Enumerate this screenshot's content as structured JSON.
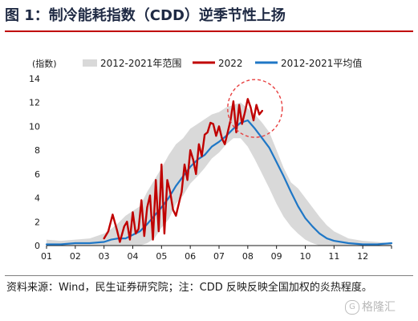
{
  "header": {
    "title": "图 1：制冷能耗指数（CDD）逆季节性上扬"
  },
  "footer": {
    "source": "资料来源：Wind，民生证券研究院；注：CDD 反映反映全国加权的炎热程度。",
    "watermark": "格隆汇",
    "watermark_glyph": "G"
  },
  "colors": {
    "range_band": "#d9d9d9",
    "series_2022": "#c00000",
    "series_avg": "#1f77c6",
    "highlight_circle": "#e84040"
  },
  "chart_data": {
    "type": "area",
    "unit_label": "(指数)",
    "ylim": [
      0,
      14
    ],
    "yticks": [
      0,
      2,
      4,
      6,
      8,
      10,
      12,
      14
    ],
    "xlim": [
      1,
      13
    ],
    "xticks": [
      "01",
      "02",
      "03",
      "04",
      "05",
      "06",
      "07",
      "08",
      "09",
      "10",
      "11",
      "12"
    ],
    "grid": false,
    "legend_position": "top",
    "legend": [
      "2012-2021年范围",
      "2022",
      "2012-2021平均值"
    ],
    "annotation": "dashed circle highlighting late-July to mid-August 2022 peak",
    "range_band": {
      "name": "2012-2021年范围",
      "x": [
        1,
        1.5,
        2,
        2.5,
        3,
        3.25,
        3.5,
        3.75,
        4,
        4.25,
        4.5,
        4.75,
        5,
        5.25,
        5.5,
        5.75,
        6,
        6.25,
        6.5,
        6.75,
        7,
        7.25,
        7.5,
        7.75,
        8,
        8.25,
        8.5,
        8.75,
        9,
        9.25,
        9.5,
        9.75,
        10,
        10.25,
        10.5,
        10.75,
        11,
        11.5,
        12,
        12.5,
        13
      ],
      "low": [
        0,
        0,
        0,
        0,
        0,
        0,
        0,
        0,
        0,
        0,
        0.2,
        0.6,
        1.5,
        2.2,
        3.5,
        4.2,
        5.2,
        5.8,
        6.5,
        7.3,
        7.8,
        8.5,
        9,
        9,
        8.3,
        7.2,
        6,
        4.8,
        3.5,
        2.4,
        1.6,
        1,
        0.5,
        0.2,
        0,
        0,
        0,
        0,
        0,
        0,
        0
      ],
      "high": [
        0.5,
        0.4,
        0.5,
        0.6,
        1.0,
        1.4,
        1.9,
        2.5,
        2.9,
        3.3,
        4.5,
        5.5,
        6.5,
        7.6,
        8.5,
        9,
        9.8,
        10.2,
        10.6,
        11,
        11.2,
        11.6,
        11.8,
        12,
        11.5,
        11,
        10.3,
        9.5,
        8,
        6.5,
        5.3,
        4.8,
        4,
        3.2,
        2.4,
        1.7,
        1.2,
        0.6,
        0.4,
        0.3,
        0.2
      ]
    },
    "series": [
      {
        "name": "2022",
        "x": [
          3.0,
          3.15,
          3.3,
          3.45,
          3.55,
          3.7,
          3.8,
          3.9,
          4.0,
          4.1,
          4.2,
          4.3,
          4.4,
          4.5,
          4.6,
          4.7,
          4.8,
          4.9,
          5.0,
          5.1,
          5.2,
          5.3,
          5.4,
          5.5,
          5.6,
          5.7,
          5.8,
          5.9,
          6.0,
          6.1,
          6.2,
          6.3,
          6.4,
          6.5,
          6.6,
          6.7,
          6.8,
          6.9,
          7.0,
          7.1,
          7.2,
          7.3,
          7.4,
          7.5,
          7.6,
          7.7,
          7.8,
          7.9,
          8.0,
          8.1,
          8.2,
          8.3,
          8.4,
          8.5
        ],
        "values": [
          0.6,
          1.2,
          2.6,
          1.3,
          0.3,
          1.6,
          2.0,
          0.5,
          2.8,
          1.0,
          1.4,
          3.8,
          0.8,
          3.2,
          4.2,
          0.5,
          5.5,
          1.2,
          6.8,
          1.0,
          5.5,
          4.5,
          3.0,
          2.5,
          3.5,
          4.5,
          6.8,
          5.5,
          8.0,
          7.2,
          6.0,
          8.5,
          7.5,
          9.3,
          9.5,
          10.3,
          10.2,
          9.2,
          10.0,
          9.0,
          8.5,
          9.5,
          10.5,
          12.1,
          9.5,
          11.8,
          10.2,
          11.2,
          12.3,
          11.6,
          10.5,
          11.8,
          11.0,
          11.3
        ]
      },
      {
        "name": "2012-2021平均值",
        "x": [
          1.0,
          1.5,
          2.0,
          2.5,
          3.0,
          3.25,
          3.5,
          3.75,
          4.0,
          4.25,
          4.5,
          4.75,
          5.0,
          5.25,
          5.5,
          5.75,
          6.0,
          6.25,
          6.5,
          6.75,
          7.0,
          7.25,
          7.5,
          7.75,
          8.0,
          8.25,
          8.5,
          8.75,
          9.0,
          9.25,
          9.5,
          9.75,
          10.0,
          10.25,
          10.5,
          10.75,
          11.0,
          11.5,
          12.0,
          12.5,
          13.0
        ],
        "values": [
          0.1,
          0.1,
          0.2,
          0.2,
          0.3,
          0.5,
          0.6,
          0.6,
          0.9,
          1.2,
          1.8,
          2.5,
          3.2,
          4.0,
          5.0,
          5.8,
          6.6,
          7.2,
          7.6,
          8.3,
          8.7,
          9.2,
          9.8,
          10.3,
          10.5,
          9.8,
          9.0,
          8.2,
          7.0,
          5.8,
          4.5,
          3.3,
          2.3,
          1.6,
          1.0,
          0.6,
          0.4,
          0.2,
          0.1,
          0.1,
          0.2
        ]
      }
    ]
  }
}
